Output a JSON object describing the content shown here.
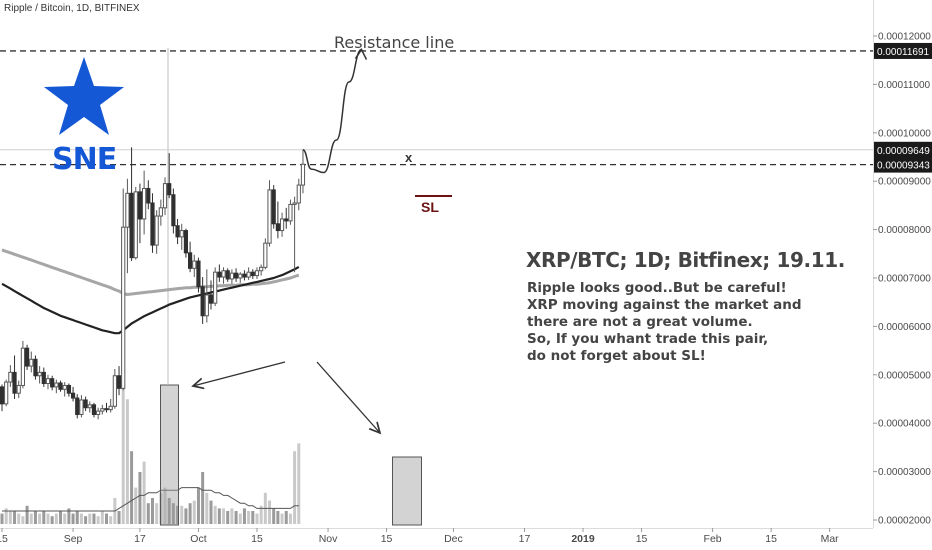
{
  "header": {
    "symbol_line": "Ripple / Bitcoin, 1D, BITFINEX"
  },
  "logo": {
    "text": "SNE",
    "color": "#1558d6"
  },
  "annotations": {
    "resistance_label": "Resistance line",
    "sl_label": "SL",
    "x_mark": "x",
    "title": "XRP/BTC; 1D; Bitfinex; 19.11.",
    "body_lines": [
      "Ripple looks good..But be careful!",
      "XRP moving against the market and",
      "there are not a great volume.",
      "So, If you whant trade this pair,",
      "do not forget about SL!"
    ]
  },
  "price_tags": [
    {
      "label": "0.00011691",
      "value": 0.00011691
    },
    {
      "label": "0.00009649",
      "value": 9.649e-05
    },
    {
      "label": "0.00009343",
      "value": 9.343e-05
    }
  ],
  "colors": {
    "up": "#585858",
    "down": "#303030",
    "ma_slow": "#222222",
    "ma_fast": "#a6a6a6",
    "sl": "#6b1313",
    "text": "#444444",
    "tag_bg": "#1a1a1a"
  },
  "chart_data": {
    "type": "candlestick",
    "title": "XRP/BTC; 1D; Bitfinex; 19.11.",
    "symbol": "Ripple / Bitcoin, 1D, BITFINEX",
    "ylim": [
      1.95e-05,
      0.0001285
    ],
    "y_ticks": [
      "0.00012000",
      "0.00011000",
      "0.00010000",
      "0.00009000",
      "0.00008000",
      "0.00007000",
      "0.00006000",
      "0.00005000",
      "0.00004000",
      "0.00003000",
      "0.00002000"
    ],
    "y_tick_values": [
      0.00012,
      0.00011,
      0.0001,
      9e-05,
      8e-05,
      7e-05,
      6e-05,
      5e-05,
      4e-05,
      3e-05,
      2e-05
    ],
    "x_ticks": [
      {
        "label": "15",
        "day": 0
      },
      {
        "label": "Sep",
        "day": 17
      },
      {
        "label": "17",
        "day": 33
      },
      {
        "label": "Oct",
        "day": 47
      },
      {
        "label": "15",
        "day": 61
      },
      {
        "label": "Nov",
        "day": 78
      },
      {
        "label": "15",
        "day": 92
      },
      {
        "label": "Dec",
        "day": 108
      },
      {
        "label": "17",
        "day": 125
      },
      {
        "label": "2019",
        "day": 139,
        "bold": true
      },
      {
        "label": "15",
        "day": 153
      },
      {
        "label": "Feb",
        "day": 170
      },
      {
        "label": "15",
        "day": 184
      },
      {
        "label": "Mar",
        "day": 198
      }
    ],
    "candles": [
      [
        4.75e-05,
        4.8e-05,
        4.25e-05,
        4.4e-05
      ],
      [
        4.4e-05,
        4.9e-05,
        4.35e-05,
        4.85e-05
      ],
      [
        4.85e-05,
        5.2e-05,
        4.75e-05,
        5.05e-05
      ],
      [
        5.05e-05,
        5.4e-05,
        4.5e-05,
        4.62e-05
      ],
      [
        4.62e-05,
        4.88e-05,
        4.52e-05,
        4.78e-05
      ],
      [
        4.78e-05,
        5.7e-05,
        4.72e-05,
        5.55e-05
      ],
      [
        5.55e-05,
        5.62e-05,
        5.1e-05,
        5.18e-05
      ],
      [
        5.18e-05,
        5.48e-05,
        5.05e-05,
        5.32e-05
      ],
      [
        5.32e-05,
        5.4e-05,
        4.9e-05,
        4.98e-05
      ],
      [
        4.98e-05,
        5.18e-05,
        4.82e-05,
        5.05e-05
      ],
      [
        5.05e-05,
        5.15e-05,
        4.75e-05,
        4.82e-05
      ],
      [
        4.82e-05,
        5e-05,
        4.7e-05,
        4.92e-05
      ],
      [
        4.92e-05,
        4.98e-05,
        4.68e-05,
        4.75e-05
      ],
      [
        4.75e-05,
        4.9e-05,
        4.62e-05,
        4.83e-05
      ],
      [
        4.83e-05,
        4.88e-05,
        4.65e-05,
        4.7e-05
      ],
      [
        4.7e-05,
        4.85e-05,
        4.55e-05,
        4.78e-05
      ],
      [
        4.78e-05,
        4.82e-05,
        4.55e-05,
        4.62e-05
      ],
      [
        4.62e-05,
        4.75e-05,
        4.45e-05,
        4.52e-05
      ],
      [
        4.52e-05,
        4.6e-05,
        4.1e-05,
        4.18e-05
      ],
      [
        4.18e-05,
        4.58e-05,
        4.12e-05,
        4.48e-05
      ],
      [
        4.48e-05,
        4.55e-05,
        4.25e-05,
        4.32e-05
      ],
      [
        4.32e-05,
        4.45e-05,
        4.22e-05,
        4.38e-05
      ],
      [
        4.38e-05,
        4.42e-05,
        4.12e-05,
        4.18e-05
      ],
      [
        4.18e-05,
        4.32e-05,
        4.08e-05,
        4.25e-05
      ],
      [
        4.25e-05,
        4.38e-05,
        4.18e-05,
        4.3e-05
      ],
      [
        4.3e-05,
        4.42e-05,
        4.22e-05,
        4.28e-05
      ],
      [
        4.28e-05,
        4.5e-05,
        4.22e-05,
        4.35e-05
      ],
      [
        4.35e-05,
        5.12e-05,
        4.3e-05,
        4.98e-05
      ],
      [
        4.98e-05,
        5.18e-05,
        4.58e-05,
        4.72e-05
      ],
      [
        4.72e-05,
        8.85e-05,
        4.68e-05,
        8.05e-05
      ],
      [
        8.05e-05,
        9.05e-05,
        7.1e-05,
        8.75e-05
      ],
      [
        8.75e-05,
        9.7e-05,
        7.35e-05,
        7.42e-05
      ],
      [
        7.42e-05,
        8.88e-05,
        7.38e-05,
        8.78e-05
      ],
      [
        8.78e-05,
        8.95e-05,
        7.72e-05,
        8.22e-05
      ],
      [
        8.22e-05,
        9.22e-05,
        7.9e-05,
        8.85e-05
      ],
      [
        8.85e-05,
        9.02e-05,
        8.42e-05,
        8.55e-05
      ],
      [
        8.55e-05,
        8.75e-05,
        7.52e-05,
        7.68e-05
      ],
      [
        7.68e-05,
        8.4e-05,
        7.5e-05,
        8.28e-05
      ],
      [
        8.28e-05,
        8.62e-05,
        8.08e-05,
        8.45e-05
      ],
      [
        8.45e-05,
        9.08e-05,
        8.3e-05,
        8.95e-05
      ],
      [
        8.95e-05,
        9.58e-05,
        8.65e-05,
        8.72e-05
      ],
      [
        8.72e-05,
        8.85e-05,
        7.92e-05,
        8.08e-05
      ],
      [
        8.08e-05,
        8.22e-05,
        7.7e-05,
        7.85e-05
      ],
      [
        7.85e-05,
        8.12e-05,
        7.58e-05,
        7.98e-05
      ],
      [
        7.98e-05,
        8.02e-05,
        7.42e-05,
        7.52e-05
      ],
      [
        7.52e-05,
        7.75e-05,
        7.12e-05,
        7.2e-05
      ],
      [
        7.2e-05,
        7.48e-05,
        7.02e-05,
        7.35e-05
      ],
      [
        7.35e-05,
        7.42e-05,
        6.7e-05,
        6.82e-05
      ],
      [
        6.82e-05,
        7.02e-05,
        6.05e-05,
        6.22e-05
      ],
      [
        6.22e-05,
        7.18e-05,
        6.08e-05,
        6.65e-05
      ],
      [
        6.65e-05,
        6.95e-05,
        6.35e-05,
        6.48e-05
      ],
      [
        6.48e-05,
        7.22e-05,
        6.42e-05,
        7.12e-05
      ],
      [
        7.12e-05,
        7.28e-05,
        6.92e-05,
        7.02e-05
      ],
      [
        7.02e-05,
        7.22e-05,
        6.88e-05,
        7.15e-05
      ],
      [
        7.15e-05,
        7.2e-05,
        6.92e-05,
        6.98e-05
      ],
      [
        6.98e-05,
        7.18e-05,
        6.88e-05,
        7.1e-05
      ],
      [
        7.1e-05,
        7.2e-05,
        6.92e-05,
        7e-05
      ],
      [
        7e-05,
        7.12e-05,
        6.9e-05,
        7.08e-05
      ],
      [
        7.08e-05,
        7.16e-05,
        6.95e-05,
        7.02e-05
      ],
      [
        7.02e-05,
        7.22e-05,
        6.96e-05,
        7.12e-05
      ],
      [
        7.12e-05,
        7.18e-05,
        6.98e-05,
        7.05e-05
      ],
      [
        7.05e-05,
        7.22e-05,
        6.98e-05,
        7.15e-05
      ],
      [
        7.15e-05,
        7.28e-05,
        7.05e-05,
        7.22e-05
      ],
      [
        7.22e-05,
        7.82e-05,
        7.18e-05,
        7.72e-05
      ],
      [
        7.72e-05,
        9.02e-05,
        7.65e-05,
        8.82e-05
      ],
      [
        8.82e-05,
        8.92e-05,
        8.02e-05,
        8.12e-05
      ],
      [
        8.12e-05,
        8.58e-05,
        7.82e-05,
        7.98e-05
      ],
      [
        7.98e-05,
        8.35e-05,
        7.85e-05,
        8.22e-05
      ],
      [
        8.22e-05,
        8.45e-05,
        8.02e-05,
        8.18e-05
      ],
      [
        8.18e-05,
        8.62e-05,
        8.1e-05,
        8.52e-05
      ],
      [
        8.52e-05,
        8.68e-05,
        7.12e-05,
        8.55e-05
      ],
      [
        8.55e-05,
        9.05e-05,
        8.4e-05,
        8.92e-05
      ],
      [
        8.92e-05,
        9.65e-05,
        8.75e-05,
        9.35e-05
      ]
    ],
    "volume": [
      4,
      6,
      5,
      5,
      4,
      3,
      7,
      4,
      5,
      4,
      5,
      4,
      3,
      4,
      5,
      4,
      6,
      4,
      5,
      4,
      3,
      4,
      4,
      3,
      5,
      4,
      3,
      10,
      5,
      53,
      48,
      28,
      14,
      20,
      24,
      8,
      10,
      8,
      12,
      14,
      10,
      8,
      7,
      7,
      6,
      8,
      9,
      14,
      20,
      12,
      9,
      7,
      6,
      6,
      5,
      6,
      5,
      4,
      6,
      5,
      5,
      4,
      7,
      12,
      9,
      6,
      5,
      4,
      5,
      4,
      28,
      31
    ],
    "volume_ma": [
      5,
      5,
      5,
      5,
      5,
      5,
      5,
      5,
      5,
      5,
      5,
      5,
      5,
      5,
      5,
      5,
      5,
      5,
      5,
      5,
      5,
      5,
      5,
      5,
      5,
      5,
      5,
      5,
      6,
      7,
      8,
      9,
      10,
      11,
      11,
      12,
      12,
      12,
      13,
      13,
      13,
      13,
      13,
      14,
      14,
      14,
      14,
      14,
      13,
      13,
      13,
      12,
      12,
      11,
      11,
      10,
      9,
      8,
      8,
      7,
      7,
      6,
      6,
      6,
      6,
      6,
      6,
      6,
      6,
      6,
      7,
      7
    ],
    "series": [
      {
        "values": [
          7.58e-05,
          7.55e-05,
          7.52e-05,
          7.49e-05,
          7.46e-05,
          7.43e-05,
          7.4e-05,
          7.37e-05,
          7.34e-05,
          7.31e-05,
          7.28e-05,
          7.25e-05,
          7.22e-05,
          7.19e-05,
          7.16e-05,
          7.13e-05,
          7.1e-05,
          7.07e-05,
          7.04e-05,
          7.01e-05,
          6.98e-05,
          6.95e-05,
          6.92e-05,
          6.89e-05,
          6.86e-05,
          6.83e-05,
          6.8e-05,
          6.76e-05,
          6.73e-05,
          6.68e-05,
          6.66e-05,
          6.67e-05,
          6.68e-05,
          6.69e-05,
          6.7e-05,
          6.71e-05,
          6.72e-05,
          6.73e-05,
          6.74e-05,
          6.75e-05,
          6.76e-05,
          6.77e-05,
          6.78e-05,
          6.79e-05,
          6.8e-05,
          6.8e-05,
          6.81e-05,
          6.81e-05,
          6.82e-05,
          6.82e-05,
          6.83e-05,
          6.83e-05,
          6.84e-05,
          6.84e-05,
          6.85e-05,
          6.85e-05,
          6.85e-05,
          6.86e-05,
          6.86e-05,
          6.86e-05,
          6.87e-05,
          6.87e-05,
          6.88e-05,
          6.89e-05,
          6.9e-05,
          6.92e-05,
          6.94e-05,
          6.96e-05,
          6.98e-05,
          7e-05,
          7.03e-05,
          7.06e-05
        ]
      },
      {
        "values": [
          6.88e-05,
          6.83e-05,
          6.78e-05,
          6.73e-05,
          6.68e-05,
          6.63e-05,
          6.58e-05,
          6.53e-05,
          6.48e-05,
          6.43e-05,
          6.38e-05,
          6.34e-05,
          6.3e-05,
          6.26e-05,
          6.22e-05,
          6.19e-05,
          6.16e-05,
          6.13e-05,
          6.1e-05,
          6.07e-05,
          6.04e-05,
          6.01e-05,
          5.98e-05,
          5.95e-05,
          5.92e-05,
          5.9e-05,
          5.88e-05,
          5.86e-05,
          5.86e-05,
          5.92e-05,
          5.99e-05,
          6.06e-05,
          6.11e-05,
          6.16e-05,
          6.21e-05,
          6.25e-05,
          6.29e-05,
          6.33e-05,
          6.37e-05,
          6.41e-05,
          6.45e-05,
          6.48e-05,
          6.51e-05,
          6.54e-05,
          6.57e-05,
          6.6e-05,
          6.62e-05,
          6.64e-05,
          6.66e-05,
          6.68e-05,
          6.7e-05,
          6.72e-05,
          6.74e-05,
          6.76e-05,
          6.78e-05,
          6.8e-05,
          6.82e-05,
          6.84e-05,
          6.86e-05,
          6.88e-05,
          6.9e-05,
          6.92e-05,
          6.94e-05,
          6.96e-05,
          6.98e-05,
          7e-05,
          7.03e-05,
          7.06e-05,
          7.1e-05,
          7.14e-05,
          7.18e-05,
          7.23e-05
        ]
      }
    ],
    "levels": [
      {
        "name": "Resistance line",
        "value": 0.00011691
      },
      {
        "value": 9.343e-05
      }
    ],
    "projection": [
      [
        72,
        9.65e-05
      ],
      [
        74,
        9.25e-05
      ],
      [
        77,
        9.18e-05
      ],
      [
        80,
        9.85e-05
      ],
      [
        83,
        0.0001105
      ],
      [
        86,
        0.0001172
      ]
    ],
    "grid": false
  }
}
